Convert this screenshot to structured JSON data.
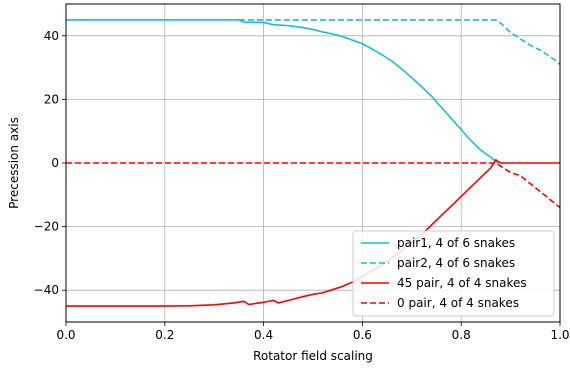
{
  "chart_data": {
    "type": "line",
    "xlabel": "Rotator field scaling",
    "ylabel": "Precession axis",
    "xlim": [
      0.0,
      1.0
    ],
    "ylim": [
      -50,
      50
    ],
    "xticks": [
      "0.0",
      "0.2",
      "0.4",
      "0.6",
      "0.8",
      "1.0"
    ],
    "yticks": [
      "−40",
      "−20",
      "0",
      "20",
      "40"
    ],
    "grid": true,
    "legend_position": "lower-right",
    "series": [
      {
        "name": "pair1, 4 of 6 snakes",
        "color": "#17becf",
        "style": "solid",
        "points": [
          [
            0.0,
            45
          ],
          [
            0.35,
            45
          ],
          [
            0.36,
            44.3
          ],
          [
            0.4,
            44.2
          ],
          [
            0.42,
            43.5
          ],
          [
            0.45,
            43.2
          ],
          [
            0.48,
            42.6
          ],
          [
            0.5,
            42.0
          ],
          [
            0.52,
            41.2
          ],
          [
            0.55,
            40.2
          ],
          [
            0.57,
            39.2
          ],
          [
            0.6,
            37.5
          ],
          [
            0.62,
            35.8
          ],
          [
            0.64,
            34.0
          ],
          [
            0.66,
            32.0
          ],
          [
            0.68,
            29.5
          ],
          [
            0.7,
            26.8
          ],
          [
            0.72,
            24.0
          ],
          [
            0.74,
            21.0
          ],
          [
            0.76,
            17.5
          ],
          [
            0.78,
            14.0
          ],
          [
            0.8,
            10.5
          ],
          [
            0.82,
            7.0
          ],
          [
            0.84,
            4.0
          ],
          [
            0.86,
            1.8
          ],
          [
            0.87,
            0.5
          ],
          [
            0.875,
            0
          ]
        ]
      },
      {
        "name": "pair2, 4 of 6 snakes",
        "color": "#17becf",
        "style": "dashed",
        "points": [
          [
            0.35,
            45
          ],
          [
            0.87,
            45
          ],
          [
            0.88,
            44
          ],
          [
            0.9,
            41
          ],
          [
            0.92,
            39
          ],
          [
            0.94,
            37
          ],
          [
            0.96,
            35.5
          ],
          [
            0.98,
            33.5
          ],
          [
            1.0,
            31
          ]
        ]
      },
      {
        "name": "45 pair, 4 of 4 snakes",
        "color": "#ff0000",
        "style": "solid",
        "points": [
          [
            0.0,
            -45
          ],
          [
            0.2,
            -45
          ],
          [
            0.25,
            -44.9
          ],
          [
            0.3,
            -44.6
          ],
          [
            0.34,
            -44.0
          ],
          [
            0.36,
            -43.5
          ],
          [
            0.37,
            -44.5
          ],
          [
            0.4,
            -43.8
          ],
          [
            0.42,
            -43.2
          ],
          [
            0.43,
            -44
          ],
          [
            0.46,
            -42.8
          ],
          [
            0.48,
            -42
          ],
          [
            0.5,
            -41.3
          ],
          [
            0.52,
            -40.8
          ],
          [
            0.54,
            -39.8
          ],
          [
            0.56,
            -38.8
          ],
          [
            0.58,
            -37.4
          ],
          [
            0.6,
            -35.6
          ],
          [
            0.62,
            -33.8
          ],
          [
            0.64,
            -32.0
          ],
          [
            0.66,
            -29.8
          ],
          [
            0.68,
            -27.5
          ],
          [
            0.7,
            -25.0
          ],
          [
            0.72,
            -22.5
          ],
          [
            0.74,
            -19.5
          ],
          [
            0.76,
            -16.5
          ],
          [
            0.78,
            -13.5
          ],
          [
            0.8,
            -10.5
          ],
          [
            0.82,
            -7.5
          ],
          [
            0.84,
            -4.5
          ],
          [
            0.86,
            -1.5
          ],
          [
            0.87,
            1.0
          ],
          [
            0.88,
            0
          ],
          [
            1.0,
            0
          ]
        ]
      },
      {
        "name": "0 pair, 4 of 4 snakes",
        "color": "#ff0000",
        "style": "dashed",
        "points": [
          [
            0.0,
            0
          ],
          [
            0.87,
            0
          ],
          [
            0.88,
            -1
          ],
          [
            0.9,
            -3
          ],
          [
            0.92,
            -4
          ],
          [
            0.94,
            -6.5
          ],
          [
            0.96,
            -9
          ],
          [
            0.98,
            -11.5
          ],
          [
            1.0,
            -14
          ]
        ]
      }
    ]
  }
}
